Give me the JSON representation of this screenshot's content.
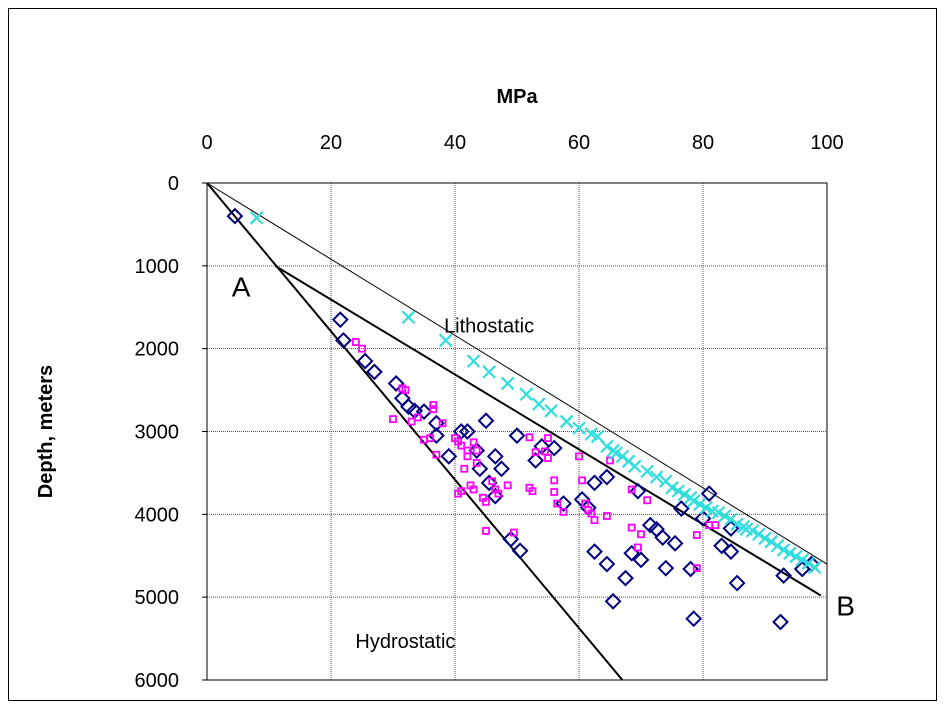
{
  "chart_data": {
    "type": "scatter",
    "title": "",
    "xlabel": "MPa",
    "ylabel": "Depth, meters",
    "xlim": [
      0,
      100
    ],
    "ylim": [
      0,
      6000
    ],
    "x_axis_position": "top",
    "y_axis_inverted": true,
    "xticks": [
      "0",
      "20",
      "40",
      "60",
      "80",
      "100"
    ],
    "yticks": [
      "0",
      "1000",
      "2000",
      "3000",
      "4000",
      "5000",
      "6000"
    ],
    "grid": true,
    "colors": {
      "diamond": "#000080",
      "square": "#ff00ff",
      "cross": "#33dddd",
      "line": "#000000"
    },
    "annotations": [
      {
        "text": "A",
        "x": 5.5,
        "y": 1250
      },
      {
        "text": "B",
        "x": 103,
        "y": 5100
      },
      {
        "text": "Lithostatic",
        "x": 45.5,
        "y": 1720
      },
      {
        "text": "Hydrostatic",
        "x": 32,
        "y": 5530
      }
    ],
    "lines": [
      {
        "name": "Lithostatic",
        "points": [
          [
            0,
            0
          ],
          [
            100,
            4600
          ]
        ],
        "width": 1
      },
      {
        "name": "Hydrostatic",
        "points": [
          [
            0,
            0
          ],
          [
            67,
            6000
          ]
        ],
        "width": 2
      },
      {
        "name": "",
        "points": [
          [
            11,
            1000
          ],
          [
            99,
            4980
          ]
        ],
        "width": 2
      }
    ],
    "series": [
      {
        "marker": "diamond",
        "points": [
          [
            4.5,
            400
          ],
          [
            21.5,
            1650
          ],
          [
            22,
            1900
          ],
          [
            25.5,
            2150
          ],
          [
            27,
            2280
          ],
          [
            30.5,
            2420
          ],
          [
            31.5,
            2600
          ],
          [
            32.5,
            2700
          ],
          [
            33.5,
            2750
          ],
          [
            35,
            2760
          ],
          [
            37,
            2900
          ],
          [
            37,
            3050
          ],
          [
            39,
            3300
          ],
          [
            41,
            3000
          ],
          [
            42,
            3000
          ],
          [
            43.5,
            3230
          ],
          [
            44,
            3450
          ],
          [
            45,
            2870
          ],
          [
            45.5,
            3620
          ],
          [
            46.5,
            3780
          ],
          [
            46.5,
            3300
          ],
          [
            47.5,
            3450
          ],
          [
            49,
            4300
          ],
          [
            50,
            3050
          ],
          [
            50.5,
            4440
          ],
          [
            53,
            3350
          ],
          [
            54,
            3180
          ],
          [
            56,
            3200
          ],
          [
            57.5,
            3870
          ],
          [
            60.5,
            3820
          ],
          [
            61.5,
            3920
          ],
          [
            62.5,
            3620
          ],
          [
            62.5,
            4450
          ],
          [
            64.5,
            3550
          ],
          [
            64.5,
            4600
          ],
          [
            65.5,
            5050
          ],
          [
            67.5,
            4770
          ],
          [
            68.5,
            4470
          ],
          [
            69.5,
            3720
          ],
          [
            70,
            4550
          ],
          [
            71.5,
            4130
          ],
          [
            72.5,
            4180
          ],
          [
            73.5,
            4280
          ],
          [
            74,
            4650
          ],
          [
            75.5,
            4350
          ],
          [
            76.5,
            3930
          ],
          [
            78,
            4660
          ],
          [
            78.5,
            5260
          ],
          [
            80,
            4050
          ],
          [
            81,
            3750
          ],
          [
            83,
            4380
          ],
          [
            84.5,
            4170
          ],
          [
            84.5,
            4450
          ],
          [
            85.5,
            4830
          ],
          [
            92.5,
            5300
          ],
          [
            93,
            4740
          ],
          [
            96,
            4660
          ],
          [
            97.5,
            4600
          ]
        ]
      },
      {
        "marker": "square",
        "points": [
          [
            24,
            1920
          ],
          [
            25,
            2000
          ],
          [
            30,
            2850
          ],
          [
            31.5,
            2480
          ],
          [
            32,
            2500
          ],
          [
            33,
            2880
          ],
          [
            34,
            2830
          ],
          [
            35,
            3100
          ],
          [
            36,
            3080
          ],
          [
            36.5,
            2680
          ],
          [
            36.5,
            2730
          ],
          [
            37,
            3280
          ],
          [
            38,
            2900
          ],
          [
            40,
            3080
          ],
          [
            40.5,
            3120
          ],
          [
            40.5,
            3750
          ],
          [
            41,
            3170
          ],
          [
            41,
            3720
          ],
          [
            41.5,
            3450
          ],
          [
            42,
            3230
          ],
          [
            42,
            3300
          ],
          [
            42.5,
            3650
          ],
          [
            43,
            3700
          ],
          [
            43,
            3130
          ],
          [
            43.5,
            3230
          ],
          [
            43.5,
            3380
          ],
          [
            44.5,
            3800
          ],
          [
            45,
            3850
          ],
          [
            45,
            4200
          ],
          [
            46,
            3600
          ],
          [
            46.5,
            3700
          ],
          [
            47,
            3750
          ],
          [
            48.5,
            3650
          ],
          [
            49.5,
            4220
          ],
          [
            52,
            3070
          ],
          [
            52,
            3680
          ],
          [
            52.5,
            3720
          ],
          [
            53,
            3250
          ],
          [
            54.5,
            3240
          ],
          [
            55,
            3320
          ],
          [
            55,
            3080
          ],
          [
            56,
            3590
          ],
          [
            56,
            3730
          ],
          [
            56.5,
            3870
          ],
          [
            57.5,
            3970
          ],
          [
            60,
            3300
          ],
          [
            60.5,
            3590
          ],
          [
            61,
            3870
          ],
          [
            61.5,
            3950
          ],
          [
            62,
            3990
          ],
          [
            62.5,
            4070
          ],
          [
            64.5,
            4020
          ],
          [
            65,
            3350
          ],
          [
            68.5,
            3700
          ],
          [
            68.5,
            4160
          ],
          [
            69.5,
            4400
          ],
          [
            70,
            4240
          ],
          [
            71,
            3830
          ],
          [
            79,
            4250
          ],
          [
            79,
            4650
          ],
          [
            81,
            4130
          ],
          [
            82,
            4130
          ]
        ]
      },
      {
        "marker": "cross",
        "points": [
          [
            8,
            420
          ],
          [
            32.5,
            1620
          ],
          [
            38.5,
            1900
          ],
          [
            43,
            2150
          ],
          [
            45.5,
            2280
          ],
          [
            48.5,
            2420
          ],
          [
            51.5,
            2550
          ],
          [
            53.5,
            2670
          ],
          [
            55.5,
            2750
          ],
          [
            58,
            2880
          ],
          [
            60,
            2960
          ],
          [
            62,
            3030
          ],
          [
            63,
            3060
          ],
          [
            64.5,
            3180
          ],
          [
            65.5,
            3230
          ],
          [
            66,
            3260
          ],
          [
            67,
            3300
          ],
          [
            68,
            3360
          ],
          [
            69,
            3420
          ],
          [
            71,
            3480
          ],
          [
            72.5,
            3550
          ],
          [
            74,
            3600
          ],
          [
            75,
            3680
          ],
          [
            76,
            3720
          ],
          [
            77,
            3760
          ],
          [
            78,
            3800
          ],
          [
            78.5,
            3840
          ],
          [
            79.5,
            3880
          ],
          [
            80.5,
            3920
          ],
          [
            81.5,
            3960
          ],
          [
            82.5,
            3980
          ],
          [
            83.5,
            4020
          ],
          [
            84.5,
            4060
          ],
          [
            85.5,
            4120
          ],
          [
            86.5,
            4150
          ],
          [
            87,
            4180
          ],
          [
            88,
            4200
          ],
          [
            89,
            4240
          ],
          [
            90,
            4290
          ],
          [
            91,
            4330
          ],
          [
            92,
            4380
          ],
          [
            93,
            4430
          ],
          [
            94,
            4470
          ],
          [
            95,
            4510
          ],
          [
            96,
            4550
          ],
          [
            97,
            4590
          ],
          [
            98,
            4640
          ]
        ]
      }
    ]
  }
}
